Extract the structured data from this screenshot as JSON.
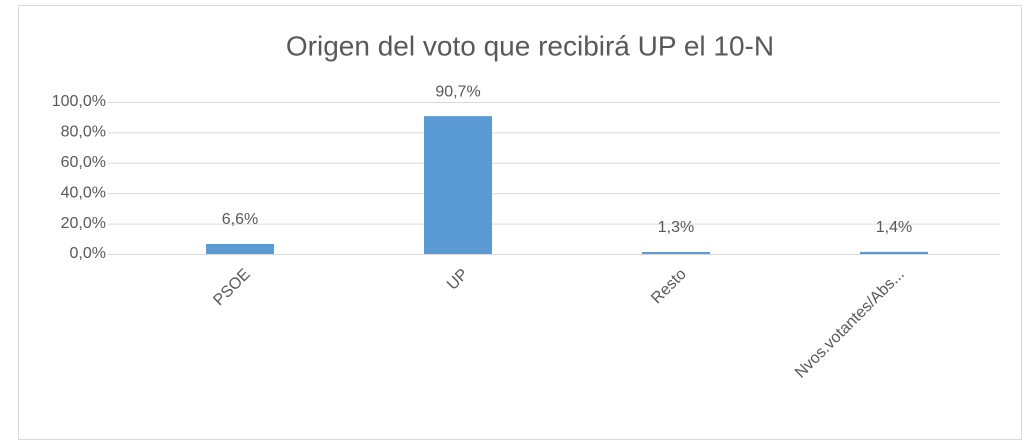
{
  "chart_data": {
    "type": "bar",
    "title": "Origen del voto que recibirá UP el 10-N",
    "categories": [
      "PSOE",
      "UP",
      "Resto",
      "Nvos.votantes/Abs..."
    ],
    "values": [
      6.6,
      90.7,
      1.3,
      1.4
    ],
    "value_labels": [
      "6,6%",
      "90,7%",
      "1,3%",
      "1,4%"
    ],
    "color": "#5b9bd5",
    "ylim": [
      0,
      100
    ],
    "yticks": [
      {
        "value": 0,
        "label": "0,0%"
      },
      {
        "value": 20,
        "label": "20,0%"
      },
      {
        "value": 40,
        "label": "40,0%"
      },
      {
        "value": 60,
        "label": "60,0%"
      },
      {
        "value": 80,
        "label": "80,0%"
      },
      {
        "value": 100,
        "label": "100,0%"
      }
    ],
    "grid": true
  }
}
